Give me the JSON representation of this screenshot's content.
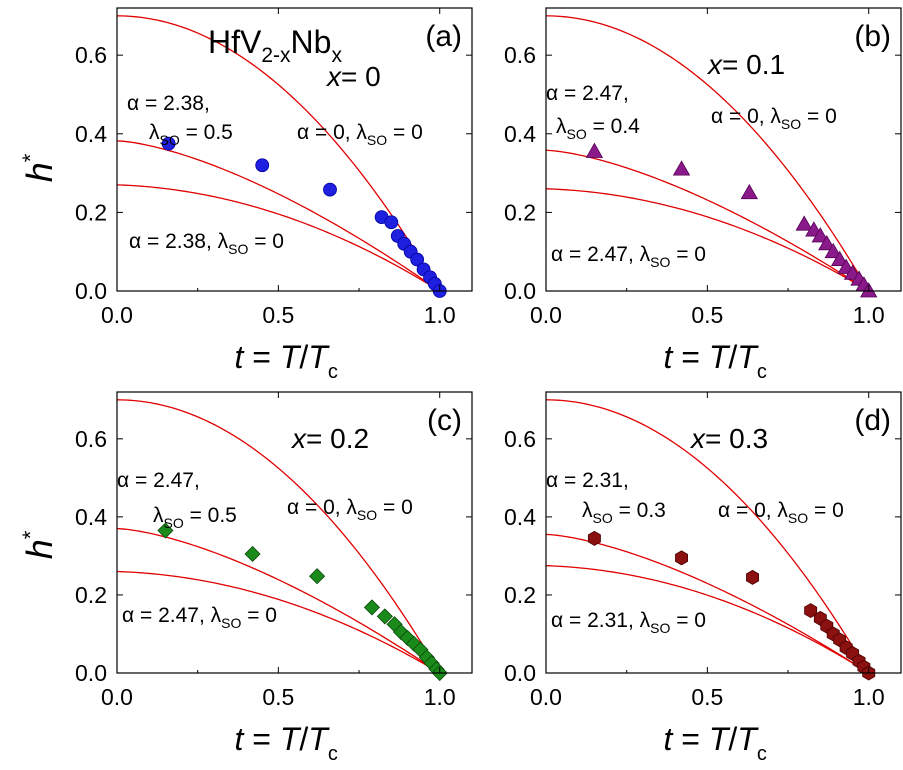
{
  "figure": {
    "compound": {
      "base": "HfV",
      "sub1": "2-x",
      "mid": "Nb",
      "sub2": "x"
    },
    "ylabel": {
      "main": "h",
      "sup": "*"
    },
    "xlabel": {
      "t": "t",
      "eq": " = ",
      "T": "T",
      "slash": "/",
      "T2": "T",
      "sub": "c"
    }
  },
  "chart_data": [
    {
      "type": "scatter",
      "panel_label": "(a)",
      "x_label": "x",
      "x_value": "= 0",
      "xlim": [
        0,
        1.1
      ],
      "ylim": [
        0,
        0.72
      ],
      "xticks": [
        "0.0",
        "0.5",
        "1.0"
      ],
      "yticks": [
        "0.0",
        "0.2",
        "0.4",
        "0.6"
      ],
      "marker": "circle",
      "marker_color": "#1f1fe0",
      "annotations": {
        "a_top_alpha": "α = 2.38,",
        "a_top_lambda": "λ",
        "a_top_lambda_sub": "SO",
        "a_top_lambda_val": " = 0.5",
        "a_zero_alpha": "α = 0,",
        "a_zero_lambda": "λ",
        "a_zero_lambda_sub": "SO",
        "a_zero_lambda_val": " = 0",
        "a_bot_alpha": "α = 2.38,",
        "a_bot_lambda": "λ",
        "a_bot_lambda_sub": "SO",
        "a_bot_lambda_val": " = 0"
      },
      "points": [
        [
          0.16,
          0.375
        ],
        [
          0.45,
          0.32
        ],
        [
          0.66,
          0.258
        ],
        [
          0.82,
          0.188
        ],
        [
          0.85,
          0.175
        ],
        [
          0.87,
          0.14
        ],
        [
          0.89,
          0.12
        ],
        [
          0.91,
          0.1
        ],
        [
          0.93,
          0.08
        ],
        [
          0.95,
          0.055
        ],
        [
          0.97,
          0.035
        ],
        [
          0.985,
          0.018
        ],
        [
          1.0,
          0.0
        ]
      ],
      "curves": {
        "alpha0": [
          0.7,
          0.0
        ],
        "fit_so": [
          0.382,
          0.0
        ],
        "fit_noso": [
          0.27,
          0.0
        ]
      }
    },
    {
      "type": "scatter",
      "panel_label": "(b)",
      "x_label": "x",
      "x_value": "= 0.1",
      "xlim": [
        0,
        1.1
      ],
      "ylim": [
        0,
        0.72
      ],
      "xticks": [
        "0.0",
        "0.5",
        "1.0"
      ],
      "yticks": [
        "0.0",
        "0.2",
        "0.4",
        "0.6"
      ],
      "marker": "triangle",
      "marker_color": "#8a1a8a",
      "annotations": {
        "a_top_alpha": "α = 2.47,",
        "a_top_lambda": "λ",
        "a_top_lambda_sub": "SO",
        "a_top_lambda_val": " = 0.4",
        "a_zero_alpha": "α = 0,",
        "a_zero_lambda": "λ",
        "a_zero_lambda_sub": "SO",
        "a_zero_lambda_val": " = 0",
        "a_bot_alpha": "α = 2.47,",
        "a_bot_lambda": "λ",
        "a_bot_lambda_sub": "SO",
        "a_bot_lambda_val": " = 0"
      },
      "points": [
        [
          0.15,
          0.355
        ],
        [
          0.42,
          0.31
        ],
        [
          0.63,
          0.25
        ],
        [
          0.8,
          0.17
        ],
        [
          0.83,
          0.155
        ],
        [
          0.85,
          0.14
        ],
        [
          0.87,
          0.12
        ],
        [
          0.89,
          0.1
        ],
        [
          0.91,
          0.08
        ],
        [
          0.93,
          0.06
        ],
        [
          0.95,
          0.045
        ],
        [
          0.97,
          0.03
        ],
        [
          0.985,
          0.015
        ],
        [
          1.0,
          0.0
        ]
      ],
      "curves": {
        "alpha0": [
          0.7,
          0.0
        ],
        "fit_so": [
          0.358,
          0.0
        ],
        "fit_noso": [
          0.26,
          0.0
        ]
      }
    },
    {
      "type": "scatter",
      "panel_label": "(c)",
      "x_label": "x",
      "x_value": "= 0.2",
      "xlim": [
        0,
        1.1
      ],
      "ylim": [
        0,
        0.72
      ],
      "xticks": [
        "0.0",
        "0.5",
        "1.0"
      ],
      "yticks": [
        "0.0",
        "0.2",
        "0.4",
        "0.6"
      ],
      "marker": "diamond",
      "marker_color": "#1a8a1a",
      "annotations": {
        "a_top_alpha": "α = 2.47,",
        "a_top_lambda": "λ",
        "a_top_lambda_sub": "SO",
        "a_top_lambda_val": " = 0.5",
        "a_zero_alpha": "α = 0,",
        "a_zero_lambda": "λ",
        "a_zero_lambda_sub": "SO",
        "a_zero_lambda_val": " = 0",
        "a_bot_alpha": "α = 2.47,",
        "a_bot_lambda": "λ",
        "a_bot_lambda_sub": "SO",
        "a_bot_lambda_val": " = 0"
      },
      "points": [
        [
          0.15,
          0.365
        ],
        [
          0.42,
          0.305
        ],
        [
          0.62,
          0.248
        ],
        [
          0.79,
          0.168
        ],
        [
          0.83,
          0.145
        ],
        [
          0.86,
          0.125
        ],
        [
          0.88,
          0.105
        ],
        [
          0.9,
          0.09
        ],
        [
          0.92,
          0.075
        ],
        [
          0.94,
          0.06
        ],
        [
          0.96,
          0.04
        ],
        [
          0.975,
          0.025
        ],
        [
          0.99,
          0.01
        ],
        [
          1.0,
          0.0
        ]
      ],
      "curves": {
        "alpha0": [
          0.7,
          0.0
        ],
        "fit_so": [
          0.37,
          0.0
        ],
        "fit_noso": [
          0.26,
          0.0
        ]
      }
    },
    {
      "type": "scatter",
      "panel_label": "(d)",
      "x_label": "x",
      "x_value": "= 0.3",
      "xlim": [
        0,
        1.1
      ],
      "ylim": [
        0,
        0.72
      ],
      "xticks": [
        "0.0",
        "0.5",
        "1.0"
      ],
      "yticks": [
        "0.0",
        "0.2",
        "0.4",
        "0.6"
      ],
      "marker": "hexagon",
      "marker_color": "#8b1010",
      "annotations": {
        "a_top_alpha": "α = 2.31,",
        "a_top_lambda": "λ",
        "a_top_lambda_sub": "SO",
        "a_top_lambda_val": " = 0.3",
        "a_zero_alpha": "α = 0,",
        "a_zero_lambda": "λ",
        "a_zero_lambda_sub": "SO",
        "a_zero_lambda_val": " = 0",
        "a_bot_alpha": "α = 2.31,",
        "a_bot_lambda": "λ",
        "a_bot_lambda_sub": "SO",
        "a_bot_lambda_val": " = 0"
      },
      "points": [
        [
          0.15,
          0.345
        ],
        [
          0.42,
          0.295
        ],
        [
          0.64,
          0.245
        ],
        [
          0.82,
          0.16
        ],
        [
          0.85,
          0.14
        ],
        [
          0.87,
          0.12
        ],
        [
          0.89,
          0.1
        ],
        [
          0.91,
          0.085
        ],
        [
          0.93,
          0.065
        ],
        [
          0.95,
          0.05
        ],
        [
          0.97,
          0.03
        ],
        [
          0.985,
          0.015
        ],
        [
          1.0,
          0.0
        ]
      ],
      "curves": {
        "alpha0": [
          0.7,
          0.0
        ],
        "fit_so": [
          0.355,
          0.0
        ],
        "fit_noso": [
          0.275,
          0.0
        ]
      }
    }
  ]
}
